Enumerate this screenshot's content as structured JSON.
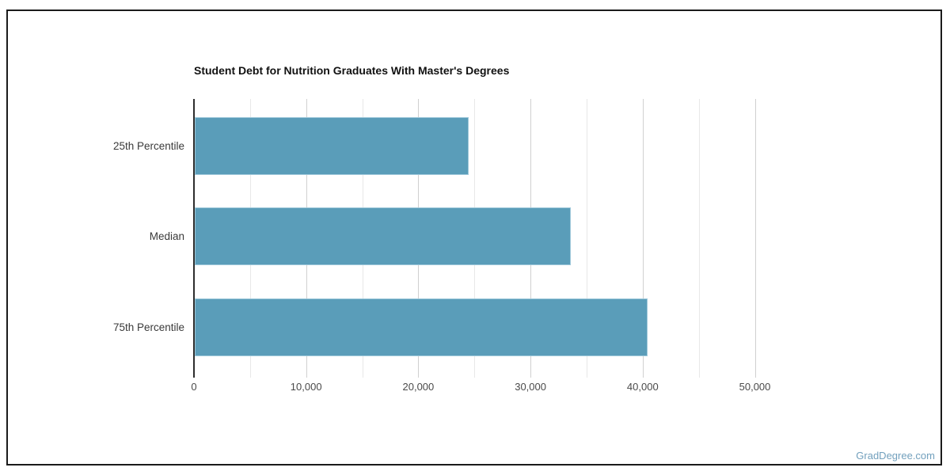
{
  "page": {
    "background_color": "#ffffff",
    "border_color": "#1b1b1b"
  },
  "watermark": {
    "text": "GradDegree.com",
    "color": "#72a0bd"
  },
  "chart_data": {
    "type": "bar",
    "orientation": "horizontal",
    "title": "Student Debt for Nutrition Graduates With Master's Degrees",
    "categories": [
      "25th Percentile",
      "Median",
      "75th Percentile"
    ],
    "values": [
      24400,
      33500,
      40400
    ],
    "xlabel": "",
    "ylabel": "",
    "xlim": [
      0,
      52000
    ],
    "x_major_ticks": [
      0,
      10000,
      20000,
      30000,
      40000,
      50000
    ],
    "x_tick_labels": [
      "0",
      "10,000",
      "20,000",
      "30,000",
      "40,000",
      "50,000"
    ],
    "x_minor_step": 5000,
    "grid": true,
    "legend": "none",
    "bar_color": "#5a9db9",
    "bar_stroke_color": "#9ec8da",
    "major_gridline_color": "#d0d0d0",
    "minor_gridline_color": "#e8e8e8",
    "axis_line_color": "#2e2e2e"
  }
}
